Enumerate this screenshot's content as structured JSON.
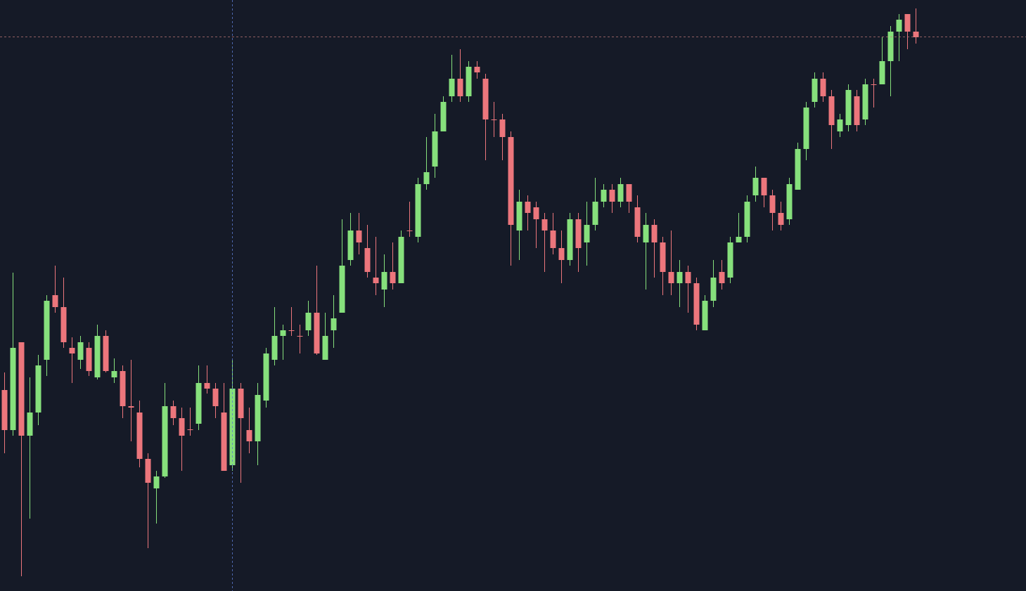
{
  "chart_data": {
    "type": "candlestick",
    "ylim": [
      0,
      841
    ],
    "up_color": "#86e07c",
    "down_color": "#ec767c",
    "open": [
      286,
      229,
      354,
      221,
      254,
      329,
      421,
      404,
      346,
      329,
      346,
      304,
      363,
      304,
      313,
      263,
      254,
      188,
      146,
      163,
      263,
      246,
      230,
      238,
      296,
      288,
      254,
      179,
      288,
      229,
      213,
      271,
      329,
      363,
      371,
      363,
      371,
      396,
      329,
      371,
      396,
      471,
      513,
      488,
      446,
      429,
      454,
      438,
      513,
      504,
      579,
      604,
      654,
      704,
      729,
      704,
      746,
      729,
      671,
      671,
      646,
      513,
      554,
      546,
      529,
      513,
      488,
      471,
      529,
      496,
      521,
      554,
      571,
      554,
      579,
      546,
      496,
      521,
      496,
      454,
      438,
      454,
      438,
      371,
      413,
      454,
      446,
      496,
      504,
      563,
      588,
      563,
      538,
      529,
      571,
      629,
      696,
      729,
      704,
      654,
      663,
      704,
      671,
      721,
      721,
      754,
      796,
      821,
      796
    ],
    "high": [
      311,
      453,
      354,
      304,
      336,
      421,
      463,
      446,
      361,
      363,
      354,
      379,
      371,
      331,
      321,
      329,
      271,
      196,
      171,
      296,
      271,
      261,
      261,
      321,
      321,
      296,
      296,
      329,
      296,
      261,
      296,
      346,
      404,
      379,
      404,
      379,
      413,
      463,
      396,
      421,
      529,
      538,
      538,
      521,
      504,
      479,
      496,
      513,
      554,
      588,
      646,
      679,
      704,
      763,
      771,
      754,
      754,
      736,
      696,
      679,
      654,
      571,
      563,
      554,
      538,
      538,
      513,
      538,
      538,
      554,
      588,
      579,
      579,
      588,
      579,
      563,
      538,
      529,
      504,
      513,
      471,
      463,
      446,
      421,
      471,
      471,
      504,
      538,
      563,
      604,
      588,
      571,
      554,
      588,
      638,
      696,
      738,
      738,
      713,
      679,
      721,
      713,
      729,
      729,
      788,
      804,
      821,
      821,
      829
    ],
    "low": [
      196,
      221,
      21,
      103,
      236,
      306,
      396,
      346,
      296,
      316,
      306,
      301,
      311,
      296,
      246,
      213,
      176,
      61,
      96,
      161,
      236,
      171,
      221,
      229,
      281,
      246,
      171,
      171,
      154,
      196,
      179,
      261,
      321,
      329,
      363,
      338,
      363,
      336,
      329,
      346,
      396,
      463,
      479,
      446,
      421,
      404,
      429,
      438,
      504,
      496,
      571,
      588,
      654,
      696,
      696,
      696,
      729,
      613,
      646,
      613,
      463,
      471,
      513,
      488,
      454,
      479,
      438,
      463,
      454,
      463,
      513,
      546,
      538,
      546,
      538,
      496,
      429,
      446,
      421,
      421,
      404,
      396,
      371,
      371,
      404,
      429,
      438,
      496,
      496,
      554,
      546,
      513,
      513,
      521,
      571,
      613,
      688,
      696,
      629,
      646,
      654,
      654,
      663,
      688,
      721,
      704,
      754,
      771,
      779
    ],
    "close": [
      229,
      346,
      221,
      254,
      321,
      413,
      404,
      354,
      338,
      354,
      313,
      363,
      313,
      313,
      263,
      261,
      188,
      154,
      163,
      263,
      246,
      221,
      229,
      296,
      288,
      263,
      171,
      288,
      246,
      213,
      279,
      338,
      363,
      371,
      370,
      362,
      396,
      338,
      363,
      388,
      463,
      513,
      496,
      454,
      438,
      454,
      438,
      504,
      512,
      579,
      596,
      654,
      696,
      729,
      704,
      746,
      738,
      671,
      670,
      646,
      521,
      554,
      538,
      529,
      513,
      488,
      471,
      529,
      488,
      521,
      554,
      571,
      554,
      579,
      554,
      504,
      521,
      496,
      454,
      438,
      454,
      438,
      379,
      413,
      446,
      438,
      496,
      504,
      554,
      588,
      563,
      538,
      521,
      579,
      629,
      688,
      729,
      704,
      663,
      671,
      713,
      663,
      721,
      720,
      754,
      796,
      813,
      796,
      788
    ]
  }
}
